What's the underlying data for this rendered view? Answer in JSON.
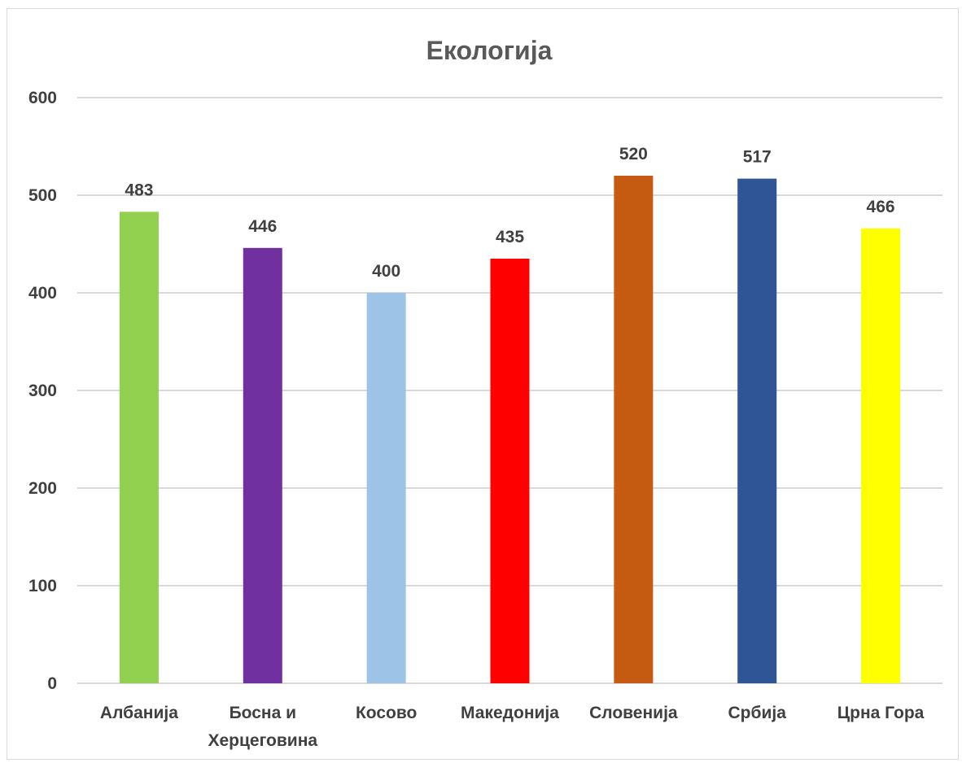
{
  "chart_data": {
    "type": "bar",
    "title": "Екологија",
    "categories": [
      "Албанија",
      "Босна и Херцеговина",
      "Косово",
      "Македонија",
      "Словенија",
      "Србија",
      "Црна Гора"
    ],
    "category_lines": [
      [
        "Албанија"
      ],
      [
        "Босна и",
        "Херцеговина"
      ],
      [
        "Косово"
      ],
      [
        "Македонија"
      ],
      [
        "Словенија"
      ],
      [
        "Србија"
      ],
      [
        "Црна Гора"
      ]
    ],
    "values": [
      483,
      446,
      400,
      435,
      520,
      517,
      466
    ],
    "colors": [
      "#92d050",
      "#7030a0",
      "#9dc3e6",
      "#ff0000",
      "#c55a11",
      "#2f5597",
      "#ffff00"
    ],
    "ylim": [
      0,
      600
    ],
    "yticks": [
      0,
      100,
      200,
      300,
      400,
      500,
      600
    ],
    "grid": true,
    "legend": "none",
    "data_labels": true
  }
}
